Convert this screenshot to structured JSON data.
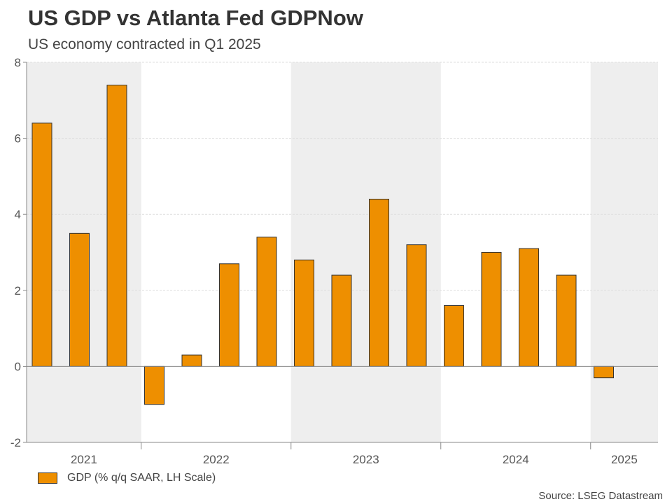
{
  "chart_data": {
    "type": "bar",
    "title": "US GDP vs Atlanta Fed GDPNow",
    "subtitle": "US economy contracted in Q1 2025",
    "ylim": [
      -2,
      8
    ],
    "yticks": [
      "-2",
      "0",
      "2",
      "4",
      "6",
      "8"
    ],
    "year_groups": [
      {
        "label": "2021",
        "count": 3
      },
      {
        "label": "2022",
        "count": 4
      },
      {
        "label": "2023",
        "count": 4
      },
      {
        "label": "2024",
        "count": 4
      },
      {
        "label": "2025",
        "count": 1
      }
    ],
    "series": [
      {
        "name": "GDP (% q/q SAAR, LH Scale)",
        "color": "#ee8f00",
        "values": [
          6.4,
          3.5,
          7.4,
          -1.0,
          0.3,
          2.7,
          3.4,
          2.8,
          2.4,
          4.4,
          3.2,
          1.6,
          3.0,
          3.1,
          2.4,
          -0.3
        ]
      }
    ],
    "grid": true,
    "legend_position": "bottom-left",
    "source": "Source: LSEG Datastream",
    "band_color": "#eeeeee"
  }
}
